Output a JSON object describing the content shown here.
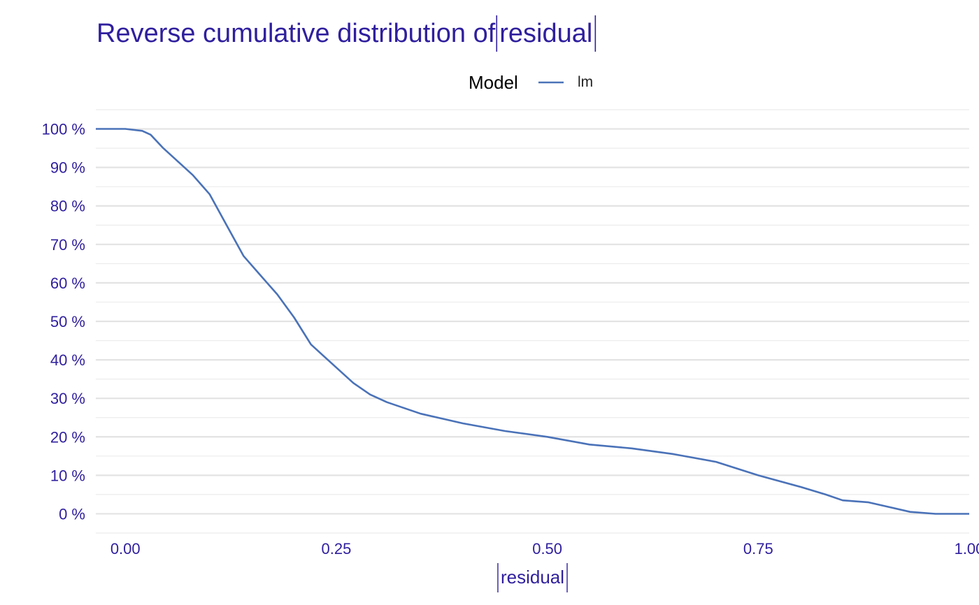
{
  "chart_data": {
    "type": "line",
    "title": "Reverse cumulative distribution of |residual|",
    "xlabel": "|residual|",
    "ylabel": "",
    "xlim": [
      -0.035,
      1.0
    ],
    "ylim": [
      -0.05,
      1.05
    ],
    "x_ticks": [
      0,
      0.25,
      0.5,
      0.75,
      1.0
    ],
    "x_tick_labels": [
      "0.00",
      "0.25",
      "0.50",
      "0.75",
      "1.00"
    ],
    "y_ticks": [
      0,
      0.1,
      0.2,
      0.3,
      0.4,
      0.5,
      0.6,
      0.7,
      0.8,
      0.9,
      1.0
    ],
    "y_tick_labels": [
      "0 %",
      "10 %",
      "20 %",
      "30 %",
      "40 %",
      "50 %",
      "60 %",
      "70 %",
      "80 %",
      "90 %",
      "100 %"
    ],
    "grid": true,
    "legend": {
      "title": "Model",
      "position": "top"
    },
    "colors": {
      "title": "#2f1f9e",
      "axis_text": "#2f1f9e",
      "series": "#4a72b8"
    },
    "series": [
      {
        "name": "lm",
        "x": [
          -0.035,
          0.0,
          0.02,
          0.03,
          0.045,
          0.06,
          0.08,
          0.09,
          0.1,
          0.12,
          0.14,
          0.16,
          0.18,
          0.2,
          0.22,
          0.25,
          0.27,
          0.29,
          0.31,
          0.35,
          0.4,
          0.45,
          0.5,
          0.55,
          0.6,
          0.65,
          0.7,
          0.75,
          0.8,
          0.83,
          0.85,
          0.88,
          0.9,
          0.93,
          0.96,
          1.0
        ],
        "y": [
          1.0,
          1.0,
          0.995,
          0.985,
          0.95,
          0.92,
          0.88,
          0.855,
          0.83,
          0.75,
          0.67,
          0.62,
          0.57,
          0.51,
          0.44,
          0.38,
          0.34,
          0.31,
          0.29,
          0.26,
          0.235,
          0.215,
          0.2,
          0.18,
          0.17,
          0.155,
          0.135,
          0.1,
          0.07,
          0.05,
          0.035,
          0.03,
          0.02,
          0.005,
          0.0,
          0.0
        ]
      }
    ]
  }
}
